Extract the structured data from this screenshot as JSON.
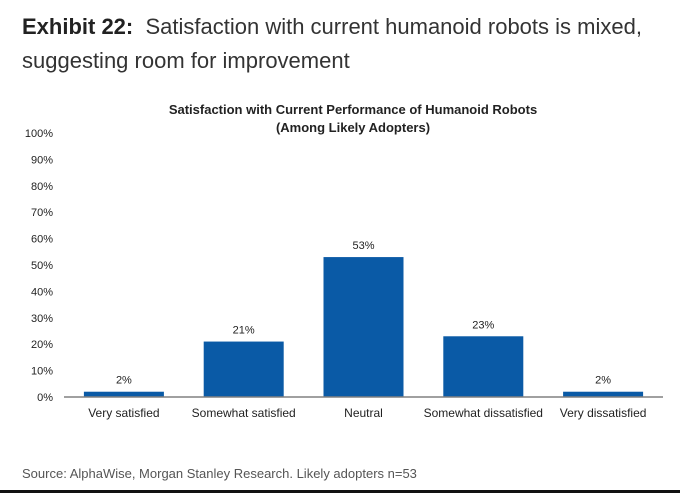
{
  "heading": {
    "label": "Exhibit 22:",
    "text_line1": "Satisfaction with current humanoid robots is mixed,",
    "text_line2": "suggesting room for improvement"
  },
  "source": "Source: AlphaWise, Morgan Stanley Research. Likely adopters n=53",
  "colors": {
    "bar": "#0a5aa6",
    "axis": "#808080",
    "text": "#222222"
  },
  "chart_data": {
    "type": "bar",
    "title_line1": "Satisfaction with Current Performance of Humanoid Robots",
    "title_line2": "(Among Likely Adopters)",
    "categories": [
      "Very satisfied",
      "Somewhat satisfied",
      "Neutral",
      "Somewhat dissatisfied",
      "Very dissatisfied"
    ],
    "values": [
      2,
      21,
      53,
      23,
      2
    ],
    "data_labels": [
      "2%",
      "21%",
      "53%",
      "23%",
      "2%"
    ],
    "ylim": [
      0,
      100
    ],
    "yticks": [
      0,
      10,
      20,
      30,
      40,
      50,
      60,
      70,
      80,
      90,
      100
    ],
    "ytick_labels": [
      "0%",
      "10%",
      "20%",
      "30%",
      "40%",
      "50%",
      "60%",
      "70%",
      "80%",
      "90%",
      "100%"
    ],
    "xlabel": "",
    "ylabel": "",
    "grid": false,
    "legend": "none"
  }
}
